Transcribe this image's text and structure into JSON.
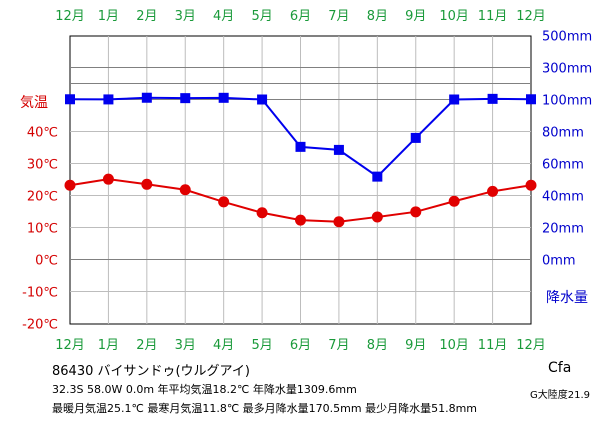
{
  "chart_data": {
    "type": "line",
    "months": [
      "12月",
      "1月",
      "2月",
      "3月",
      "4月",
      "5月",
      "6月",
      "7月",
      "8月",
      "9月",
      "10月",
      "11月",
      "12月"
    ],
    "temp_ticks": [
      "40℃",
      "30℃",
      "20℃",
      "10℃",
      "0℃",
      "-10℃",
      "-20℃"
    ],
    "temp_tick_values": [
      40,
      30,
      20,
      10,
      0,
      -10,
      -20
    ],
    "precip_ticks": [
      "500mm",
      "300mm",
      "100mm",
      "80mm",
      "60mm",
      "40mm",
      "20mm",
      "0mm"
    ],
    "left_axis_title": "気温",
    "right_axis_title": "降水量",
    "series": [
      {
        "key": "temperature",
        "unit": "℃",
        "values": [
          23.2,
          25.1,
          23.5,
          21.8,
          18.0,
          14.6,
          12.3,
          11.8,
          13.3,
          14.9,
          18.2,
          21.3,
          23.2
        ],
        "color": "#e00000"
      },
      {
        "key": "precipitation",
        "unit": "mm",
        "values": [
          101.5,
          100.5,
          111.0,
          108.5,
          110.5,
          100.0,
          70.4,
          68.5,
          51.8,
          76.0,
          100.0,
          104.0,
          101.5
        ],
        "color": "#0000ee"
      }
    ]
  },
  "info": {
    "station": "86430 バイサンドゥ(ウルグアイ)",
    "stats1": "32.3S  58.0W  0.0m  年平均気温18.2℃  年降水量1309.6mm",
    "stats2": "最暖月気温25.1℃ 最寒月気温11.8℃ 最多月降水量170.5mm 最少月降水量51.8mm",
    "climate_class": "Cfa",
    "continentality": "G大陸度21.9"
  }
}
